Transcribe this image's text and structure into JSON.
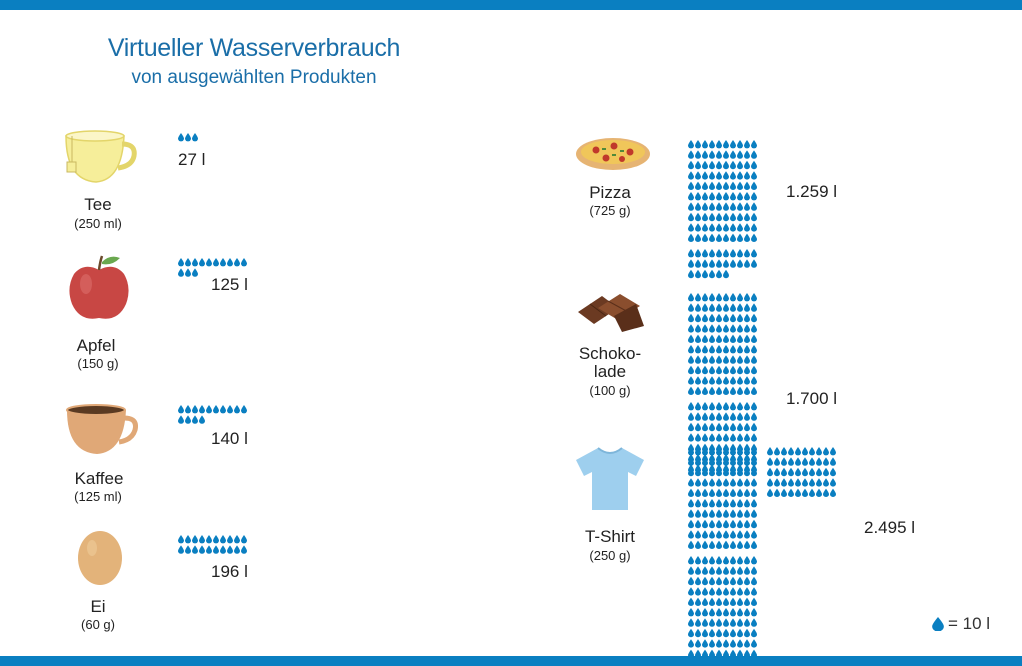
{
  "header": {
    "title": "Virtueller Wasserverbrauch",
    "subtitle": "von ausgewählten Produkten"
  },
  "legend": {
    "label": "= 10 l",
    "drop_icon": "water-drop-icon"
  },
  "colors": {
    "accent": "#0a7fc1",
    "drop": "#0a7fc1",
    "title": "#1a6ea8"
  },
  "chart_data": {
    "type": "pictograph",
    "unit_per_icon": 10,
    "unit": "l",
    "title": "Virtueller Wasserverbrauch",
    "subtitle": "von ausgewählten Produkten",
    "items": [
      {
        "name": "Tee",
        "portion": "(250 ml)",
        "value": 27,
        "value_label": "27 l",
        "icon": "tea-cup-icon"
      },
      {
        "name": "Apfel",
        "portion": "(150 g)",
        "value": 125,
        "value_label": "125 l",
        "icon": "apple-icon"
      },
      {
        "name": "Kaffee",
        "portion": "(125 ml)",
        "value": 140,
        "value_label": "140 l",
        "icon": "coffee-cup-icon"
      },
      {
        "name": "Ei",
        "portion": "(60 g)",
        "value": 196,
        "value_label": "196 l",
        "icon": "egg-icon"
      },
      {
        "name": "Pizza",
        "portion": "(725 g)",
        "value": 1259,
        "value_label": "1.259 l",
        "icon": "pizza-icon"
      },
      {
        "name": "Schoko-\nlade",
        "portion": "(100 g)",
        "value": 1700,
        "value_label": "1.700 l",
        "icon": "chocolate-icon"
      },
      {
        "name": "T-Shirt",
        "portion": "(250 g)",
        "value": 2495,
        "value_label": "2.495 l",
        "icon": "tshirt-icon"
      }
    ]
  }
}
